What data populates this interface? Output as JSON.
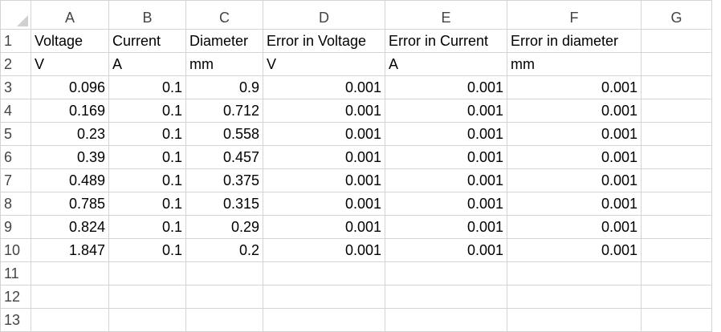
{
  "sheet": {
    "columns": [
      "A",
      "B",
      "C",
      "D",
      "E",
      "F",
      "G"
    ],
    "rows": [
      {
        "n": "1",
        "cells": [
          "Voltage",
          "Current",
          "Diameter",
          "Error in Voltage",
          "Error in Current",
          "Error in diameter",
          ""
        ]
      },
      {
        "n": "2",
        "cells": [
          "V",
          "A",
          "mm",
          "V",
          "A",
          "mm",
          ""
        ]
      },
      {
        "n": "3",
        "cells": [
          "0.096",
          "0.1",
          "0.9",
          "0.001",
          "0.001",
          "0.001",
          ""
        ]
      },
      {
        "n": "4",
        "cells": [
          "0.169",
          "0.1",
          "0.712",
          "0.001",
          "0.001",
          "0.001",
          ""
        ]
      },
      {
        "n": "5",
        "cells": [
          "0.23",
          "0.1",
          "0.558",
          "0.001",
          "0.001",
          "0.001",
          ""
        ]
      },
      {
        "n": "6",
        "cells": [
          "0.39",
          "0.1",
          "0.457",
          "0.001",
          "0.001",
          "0.001",
          ""
        ]
      },
      {
        "n": "7",
        "cells": [
          "0.489",
          "0.1",
          "0.375",
          "0.001",
          "0.001",
          "0.001",
          ""
        ]
      },
      {
        "n": "8",
        "cells": [
          "0.785",
          "0.1",
          "0.315",
          "0.001",
          "0.001",
          "0.001",
          ""
        ]
      },
      {
        "n": "9",
        "cells": [
          "0.824",
          "0.1",
          "0.29",
          "0.001",
          "0.001",
          "0.001",
          ""
        ]
      },
      {
        "n": "10",
        "cells": [
          "1.847",
          "0.1",
          "0.2",
          "0.001",
          "0.001",
          "0.001",
          ""
        ]
      },
      {
        "n": "11",
        "cells": [
          "",
          "",
          "",
          "",
          "",
          "",
          ""
        ]
      },
      {
        "n": "12",
        "cells": [
          "",
          "",
          "",
          "",
          "",
          "",
          ""
        ]
      },
      {
        "n": "13",
        "cells": [
          "",
          "",
          "",
          "",
          "",
          "",
          ""
        ]
      }
    ]
  }
}
